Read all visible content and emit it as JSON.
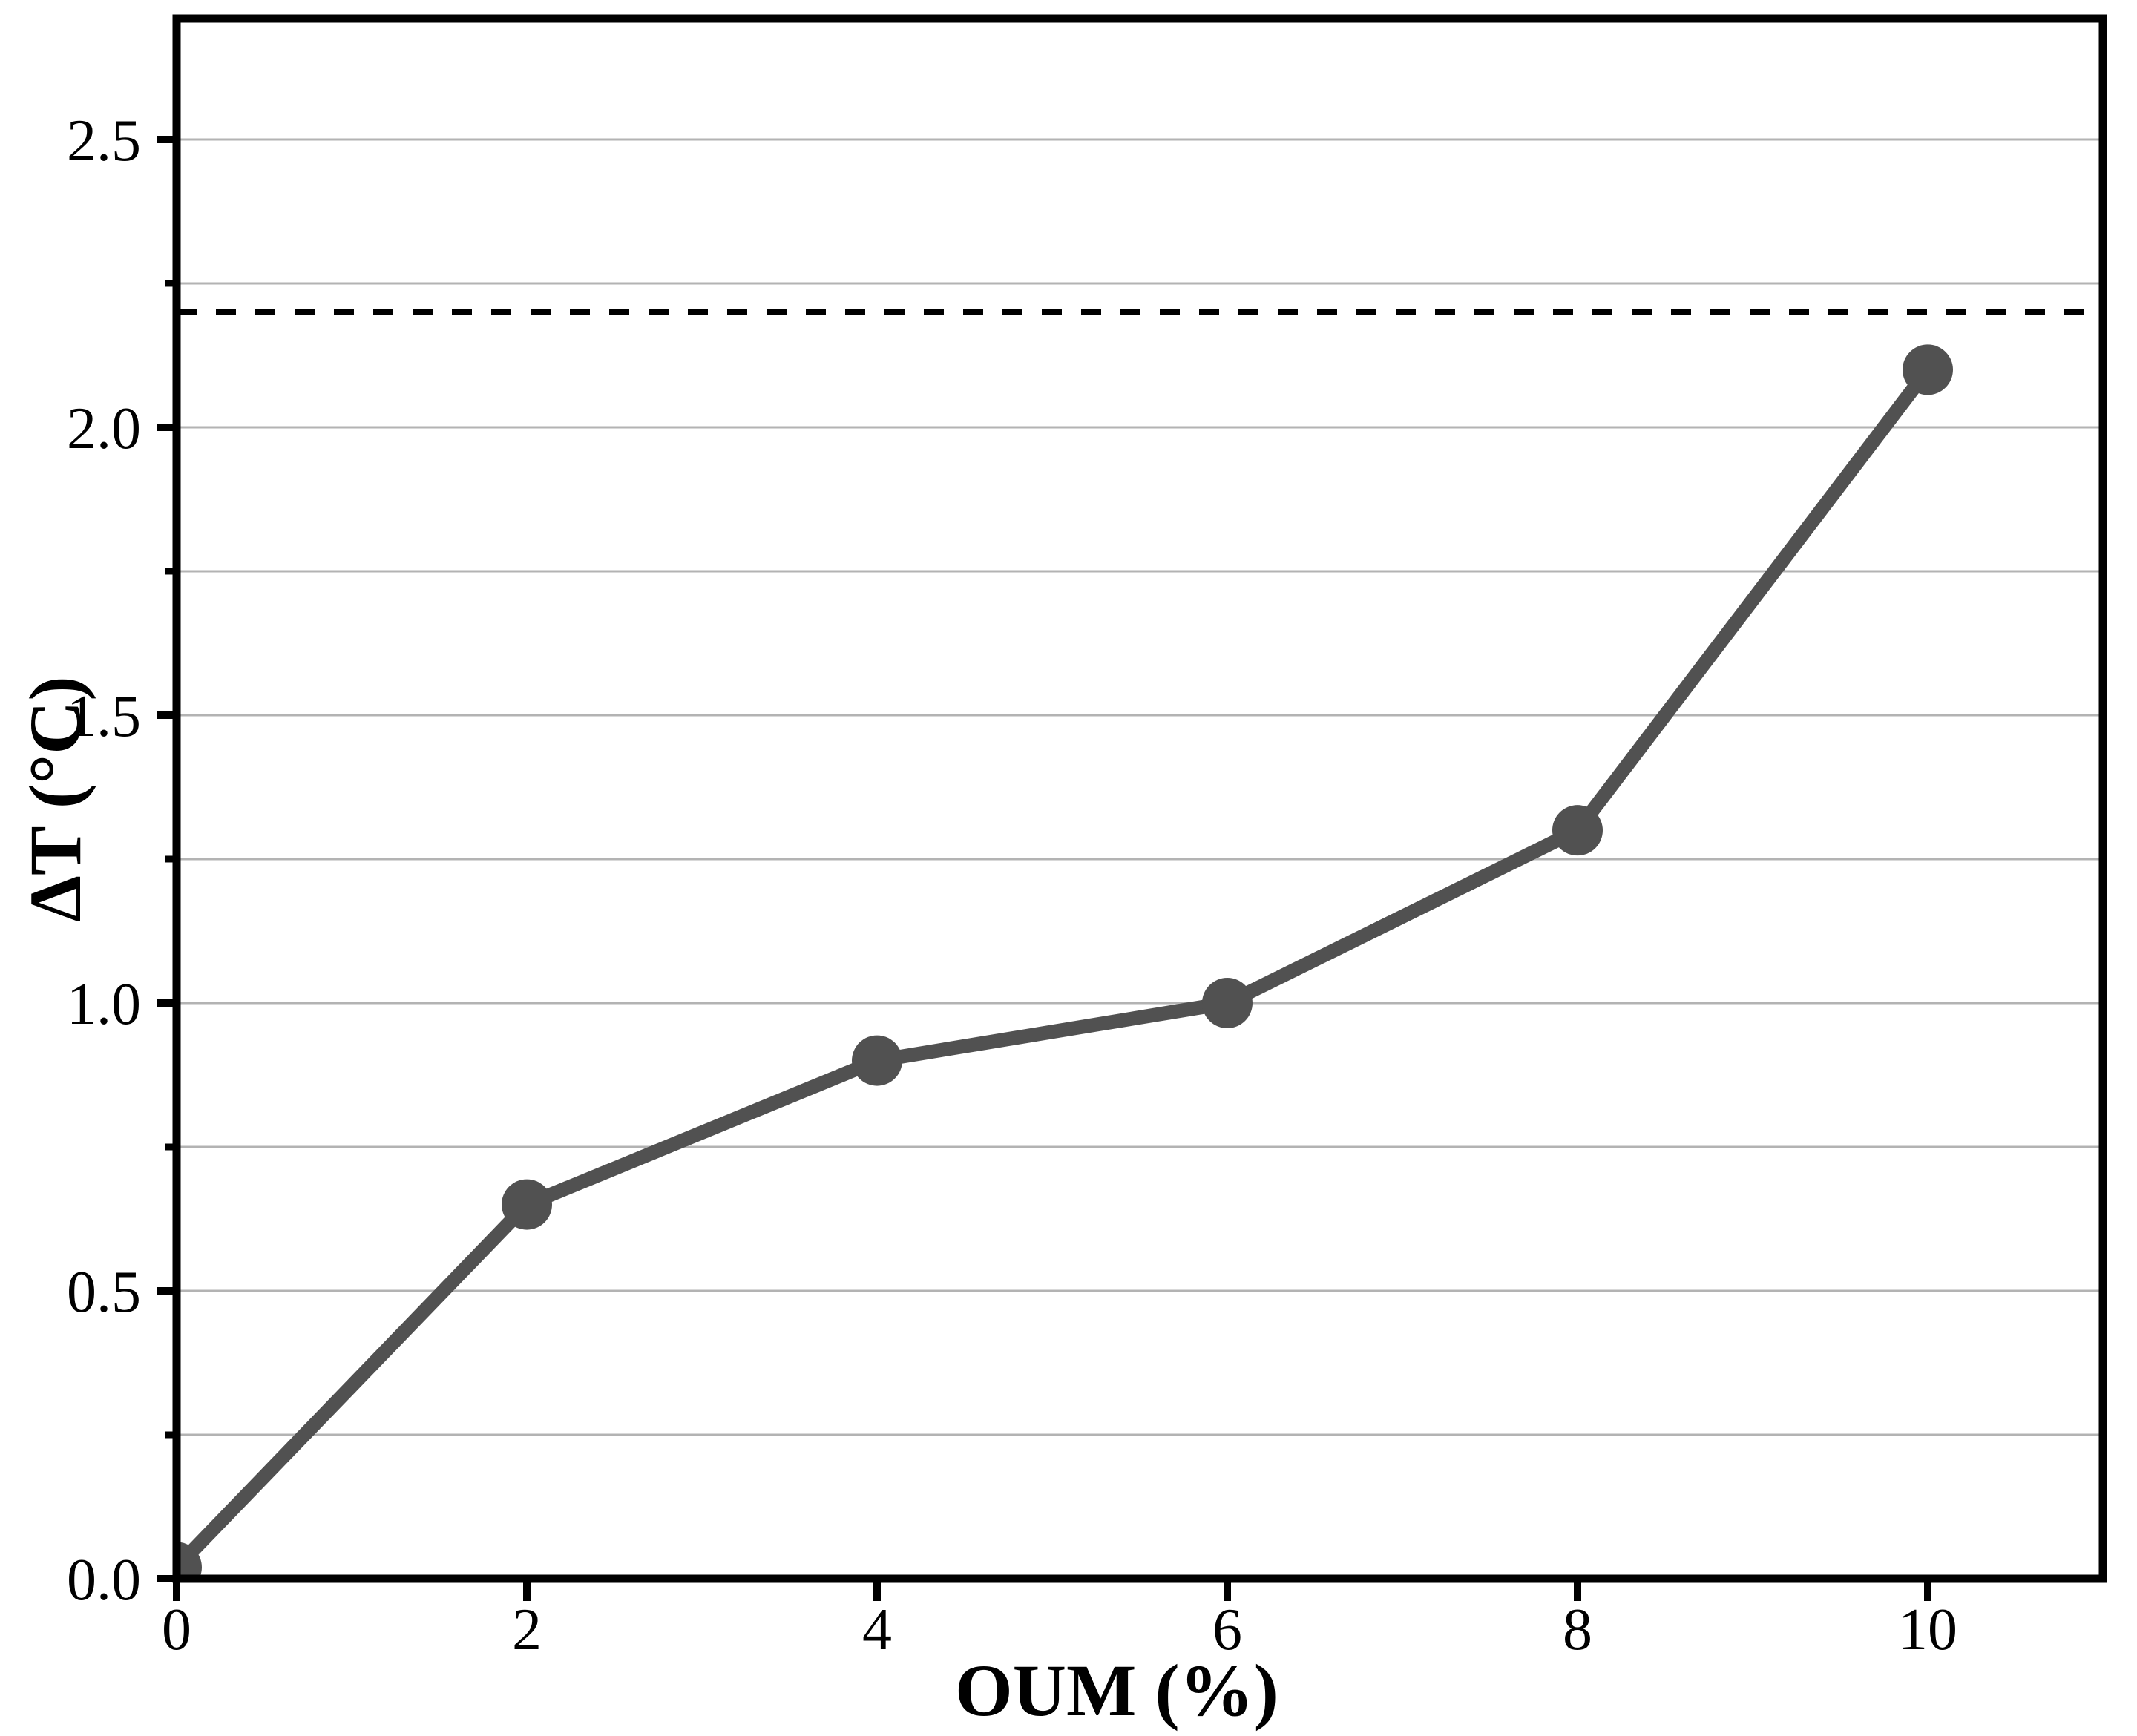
{
  "figure": {
    "background": "#ffffff"
  },
  "chart_data": {
    "type": "line",
    "title": "",
    "xlabel": "OUM (%)",
    "ylabel": "ΔT (°C)",
    "series": [
      {
        "x": [
          0,
          2,
          4,
          6,
          8,
          10
        ],
        "y": [
          0.02,
          0.65,
          0.9,
          1.0,
          1.3,
          2.1
        ],
        "color": "#515151",
        "marker": "circle",
        "line_style": "solid"
      }
    ],
    "reference_line": {
      "y": 2.2,
      "style": "dashed",
      "color": "#000000"
    },
    "xlim": [
      0,
      11
    ],
    "ylim": [
      0,
      2.71
    ],
    "xticks": {
      "values": [
        0,
        2,
        4,
        6,
        8,
        10
      ],
      "labels": [
        "0",
        "2",
        "4",
        "6",
        "8",
        "10"
      ]
    },
    "yticks": {
      "values": [
        0,
        0.5,
        1.0,
        1.5,
        2.0,
        2.5
      ],
      "labels": [
        "0.0",
        "0.5",
        "1.0",
        "1.5",
        "2.0",
        "2.5"
      ]
    },
    "yminorticks": [
      0.25,
      0.75,
      1.25,
      1.75,
      2.25
    ],
    "gridlines": {
      "orientation": "horizontal",
      "y_values": [
        0.25,
        0.5,
        0.75,
        1.0,
        1.25,
        1.5,
        1.75,
        2.0,
        2.25,
        2.5
      ],
      "color": "#b3b3b3"
    },
    "legend": "none",
    "colors": {
      "series": "#515151",
      "grid": "#b3b3b3",
      "axis": "#000000",
      "background": "#ffffff"
    }
  }
}
